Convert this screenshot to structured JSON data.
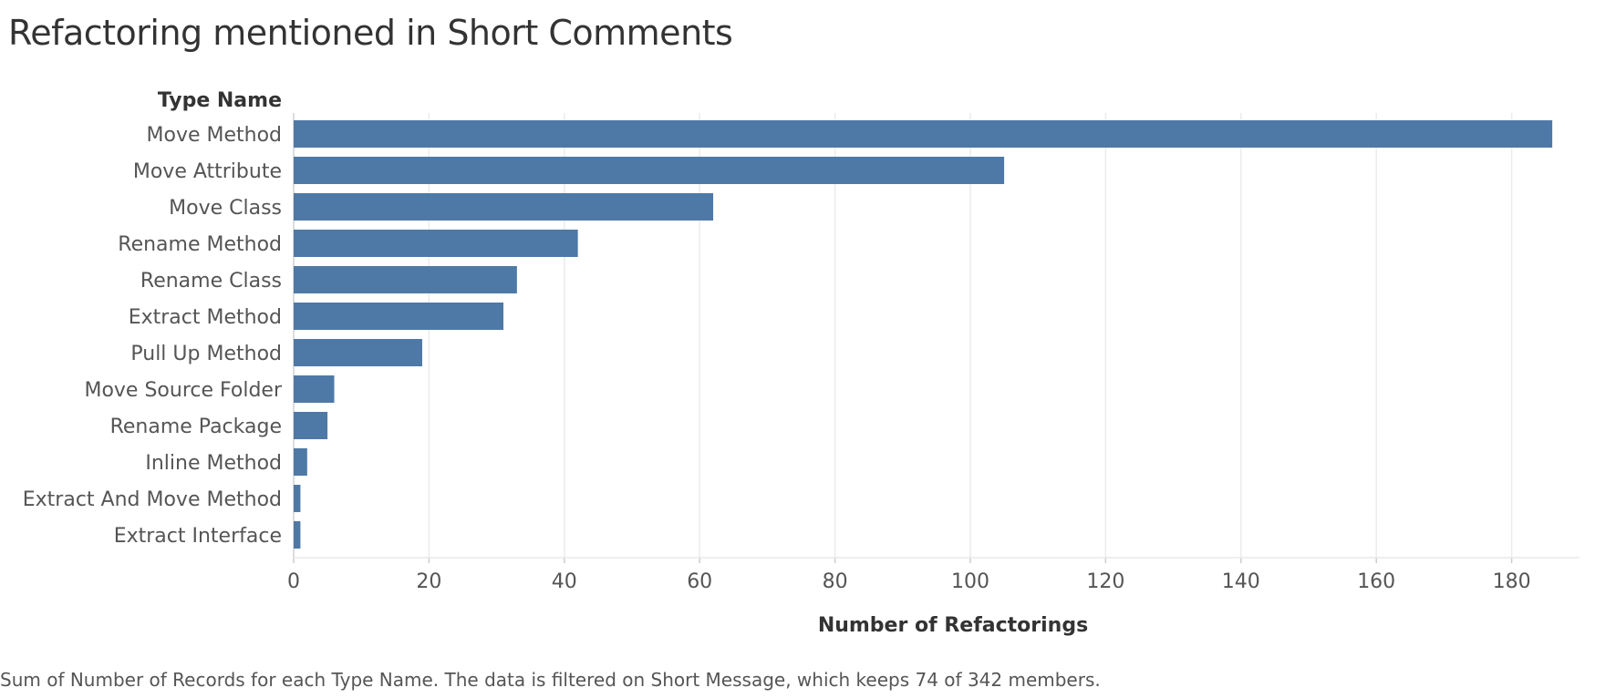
{
  "chart_data": {
    "type": "bar",
    "orientation": "horizontal",
    "title": "Refactoring mentioned in Short Comments",
    "row_header": "Type Name",
    "xlabel": "Number of Refactorings",
    "categories": [
      "Move Method",
      "Move Attribute",
      "Move Class",
      "Rename Method",
      "Rename Class",
      "Extract Method",
      "Pull Up Method",
      "Move Source Folder",
      "Rename Package",
      "Inline Method",
      "Extract And Move Method",
      "Extract Interface"
    ],
    "values": [
      186,
      105,
      62,
      42,
      33,
      31,
      19,
      6,
      5,
      2,
      1,
      1
    ],
    "xlim": [
      0,
      190
    ],
    "xticks": [
      0,
      20,
      40,
      60,
      80,
      100,
      120,
      140,
      160,
      180
    ],
    "grid": true,
    "bar_color": "#4e79a7",
    "caption": "Sum of Number of Records for each Type Name. The data is filtered on Short Message, which keeps 74 of 342 members."
  }
}
